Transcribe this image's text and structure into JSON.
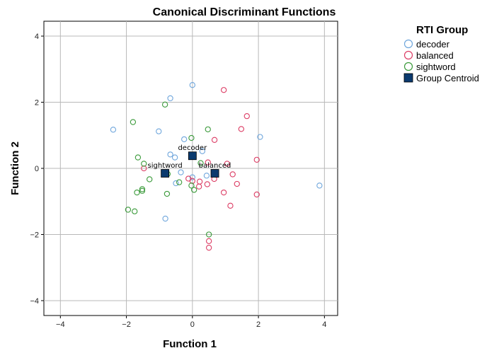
{
  "chart_data": {
    "type": "scatter",
    "title": "Canonical Discriminant Functions",
    "xlabel": "Function 1",
    "ylabel": "Function 2",
    "xlim": [
      -4.5,
      4.4
    ],
    "ylim": [
      -4.45,
      4.45
    ],
    "xticks": [
      -4,
      -2,
      0,
      2,
      4
    ],
    "yticks": [
      -4,
      -2,
      0,
      2,
      4
    ],
    "grid": true,
    "legend": {
      "title": "RTI Group",
      "placement": "right",
      "entries": [
        "decoder",
        "balanced",
        "sightword",
        "Group Centroid"
      ]
    },
    "series": [
      {
        "name": "decoder",
        "color": "#6fa6dc",
        "marker": "open-circle",
        "points": [
          [
            0.0,
            2.52
          ],
          [
            -0.67,
            2.12
          ],
          [
            -2.4,
            1.17
          ],
          [
            -1.02,
            1.12
          ],
          [
            -0.25,
            0.88
          ],
          [
            2.05,
            0.95
          ],
          [
            0.3,
            0.52
          ],
          [
            -0.67,
            0.42
          ],
          [
            -0.53,
            0.33
          ],
          [
            -0.35,
            -0.12
          ],
          [
            -0.5,
            -0.45
          ],
          [
            0.0,
            -0.27
          ],
          [
            0.43,
            -0.22
          ],
          [
            3.85,
            -0.52
          ],
          [
            -0.82,
            -1.52
          ]
        ]
      },
      {
        "name": "balanced",
        "color": "#dc3c64",
        "marker": "open-circle",
        "points": [
          [
            0.95,
            2.37
          ],
          [
            1.65,
            1.58
          ],
          [
            1.48,
            1.19
          ],
          [
            0.67,
            0.86
          ],
          [
            1.05,
            0.14
          ],
          [
            1.95,
            0.26
          ],
          [
            0.47,
            0.18
          ],
          [
            -1.47,
            0.0
          ],
          [
            1.22,
            -0.18
          ],
          [
            -0.12,
            -0.31
          ],
          [
            0.0,
            -0.38
          ],
          [
            0.22,
            -0.4
          ],
          [
            0.66,
            -0.32
          ],
          [
            0.45,
            -0.48
          ],
          [
            0.2,
            -0.55
          ],
          [
            1.35,
            -0.47
          ],
          [
            0.95,
            -0.73
          ],
          [
            1.95,
            -0.79
          ],
          [
            1.15,
            -1.13
          ],
          [
            0.5,
            -2.2
          ],
          [
            0.5,
            -2.4
          ]
        ]
      },
      {
        "name": "sightword",
        "color": "#3a9a3a",
        "marker": "open-circle",
        "points": [
          [
            -0.83,
            1.93
          ],
          [
            -1.8,
            1.4
          ],
          [
            0.47,
            1.18
          ],
          [
            -0.03,
            0.92
          ],
          [
            -1.65,
            0.33
          ],
          [
            -1.47,
            0.14
          ],
          [
            0.25,
            0.16
          ],
          [
            -0.75,
            -0.17
          ],
          [
            -1.3,
            -0.33
          ],
          [
            -0.4,
            -0.42
          ],
          [
            -0.03,
            -0.52
          ],
          [
            -1.52,
            -0.63
          ],
          [
            -1.52,
            -0.68
          ],
          [
            -1.68,
            -0.73
          ],
          [
            -0.77,
            -0.77
          ],
          [
            0.05,
            -0.65
          ],
          [
            -1.95,
            -1.25
          ],
          [
            -1.75,
            -1.3
          ],
          [
            0.5,
            -2.0
          ]
        ]
      }
    ],
    "centroids": [
      {
        "name": "decoder",
        "x": 0.0,
        "y": 0.38
      },
      {
        "name": "sightword",
        "x": -0.83,
        "y": -0.15
      },
      {
        "name": "balanced",
        "x": 0.68,
        "y": -0.15
      }
    ],
    "centroid_style": {
      "name": "Group Centroid",
      "color": "#0b3a6e",
      "marker": "filled-square"
    }
  }
}
